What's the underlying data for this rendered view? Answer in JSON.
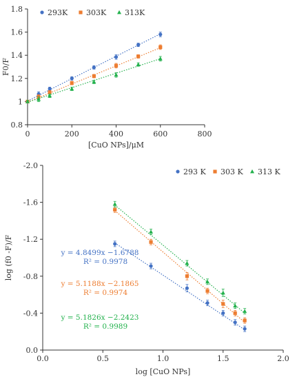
{
  "chart_data": [
    {
      "type": "scatter",
      "xlabel": "[CuO NPs]/μM",
      "ylabel": "F0/F",
      "xlim": [
        0,
        800
      ],
      "ylim": [
        0.8,
        1.8
      ],
      "xticks": [
        "0",
        "200",
        "400",
        "600",
        "800"
      ],
      "yticks": [
        "0.8",
        "1",
        "1.2",
        "1.4",
        "1.6",
        "1.8"
      ],
      "legend_position": "top-left",
      "grid": false,
      "series": [
        {
          "name": "293K",
          "color": "#4472C4",
          "marker": "circle",
          "x": [
            0,
            50,
            100,
            200,
            300,
            400,
            500,
            600
          ],
          "y": [
            1.0,
            1.065,
            1.11,
            1.2,
            1.295,
            1.385,
            1.49,
            1.58
          ],
          "err": [
            0.01,
            0.02,
            0.015,
            0.015,
            0.015,
            0.02,
            0.015,
            0.02
          ],
          "fit": {
            "x": [
              0,
              600
            ],
            "y": [
              1.005,
              1.585
            ]
          }
        },
        {
          "name": "303K",
          "color": "#ED7D31",
          "marker": "square",
          "x": [
            0,
            50,
            100,
            200,
            300,
            400,
            500,
            600
          ],
          "y": [
            1.0,
            1.04,
            1.08,
            1.16,
            1.22,
            1.31,
            1.39,
            1.47
          ],
          "err": [
            0.01,
            0.02,
            0.015,
            0.015,
            0.015,
            0.02,
            0.015,
            0.02
          ],
          "fit": {
            "x": [
              0,
              600
            ],
            "y": [
              0.995,
              1.465
            ]
          }
        },
        {
          "name": "313K",
          "color": "#22B14C",
          "marker": "triangle",
          "x": [
            0,
            50,
            100,
            200,
            300,
            400,
            500,
            600
          ],
          "y": [
            1.0,
            1.02,
            1.05,
            1.11,
            1.17,
            1.23,
            1.32,
            1.37
          ],
          "err": [
            0.01,
            0.02,
            0.015,
            0.015,
            0.015,
            0.02,
            0.015,
            0.02
          ],
          "fit": {
            "x": [
              0,
              600
            ],
            "y": [
              0.995,
              1.37
            ]
          }
        }
      ]
    },
    {
      "type": "scatter",
      "xlabel": "log [CuO NPs]",
      "ylabel": "log (f0 -F)/F",
      "xlim": [
        0.0,
        2.0
      ],
      "ylim": [
        0.0,
        -2.0
      ],
      "xticks": [
        "0.0",
        "0.5",
        "1.0",
        "1.5",
        "2.0"
      ],
      "yticks": [
        "0.0",
        "-0.4",
        "-0.8",
        "-1.2",
        "-1.6",
        "-2.0"
      ],
      "legend_position": "top-right",
      "grid": false,
      "series": [
        {
          "name": "293 K",
          "color": "#4472C4",
          "marker": "circle",
          "x": [
            0.6,
            0.9,
            1.2,
            1.37,
            1.5,
            1.6,
            1.68
          ],
          "y": [
            -1.15,
            -0.91,
            -0.67,
            -0.51,
            -0.4,
            -0.3,
            -0.23
          ],
          "err": [
            0.03,
            0.03,
            0.04,
            0.03,
            0.03,
            0.03,
            0.03
          ],
          "fit": {
            "x": [
              0.6,
              1.68
            ],
            "y": [
              -1.16,
              -0.22
            ]
          },
          "equation": "y = 4.8499x −1.6788",
          "r2": "R² = 0.9978"
        },
        {
          "name": "303 K",
          "color": "#ED7D31",
          "marker": "square",
          "x": [
            0.6,
            0.9,
            1.2,
            1.37,
            1.5,
            1.6,
            1.68
          ],
          "y": [
            -1.52,
            -1.17,
            -0.8,
            -0.64,
            -0.5,
            -0.4,
            -0.32
          ],
          "err": [
            0.03,
            0.03,
            0.04,
            0.03,
            0.04,
            0.03,
            0.03
          ],
          "fit": {
            "x": [
              0.6,
              1.68
            ],
            "y": [
              -1.51,
              -0.3
            ]
          },
          "equation": "y = 5.1188x −2.1865",
          "r2": "R² = 0.9974"
        },
        {
          "name": "313 K",
          "color": "#22B14C",
          "marker": "triangle",
          "x": [
            0.6,
            0.9,
            1.2,
            1.37,
            1.5,
            1.6,
            1.68
          ],
          "y": [
            -1.58,
            -1.28,
            -0.94,
            -0.74,
            -0.62,
            -0.48,
            -0.42
          ],
          "err": [
            0.03,
            0.03,
            0.03,
            0.03,
            0.04,
            0.03,
            0.03
          ],
          "fit": {
            "x": [
              0.6,
              1.68
            ],
            "y": [
              -1.57,
              -0.4
            ]
          },
          "equation": "y = 5.1826x −2.2423",
          "r2": "R² = 0.9989"
        }
      ]
    }
  ]
}
